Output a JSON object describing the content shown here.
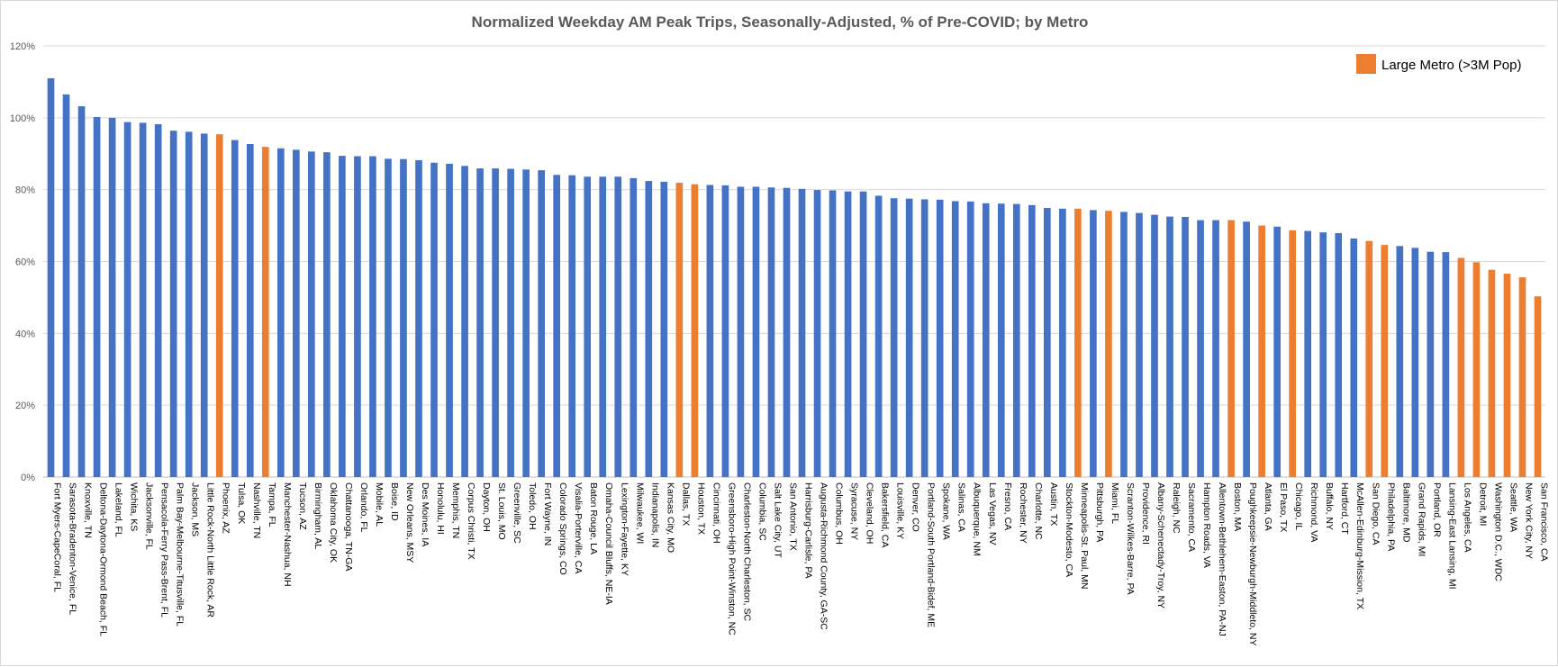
{
  "colors": {
    "default": "#4472c4",
    "large_metro": "#ed7d31",
    "grid": "#d9d9d9",
    "axis": "#bfbfbf"
  },
  "legend": {
    "label": "Large Metro (>3M Pop)"
  },
  "chart_data": {
    "type": "bar",
    "title": "Normalized Weekday AM Peak Trips, Seasonally-Adjusted, % of Pre-COVID; by Metro",
    "xlabel": "",
    "ylabel": "",
    "ylim": [
      0,
      120
    ],
    "yticks": [
      0,
      20,
      40,
      60,
      80,
      100,
      120
    ],
    "ytick_suffix": "%",
    "grid": true,
    "legend_position": "top-right",
    "categories": [
      "Fort Myers-CapeCoral, FL",
      "Sarasota-Bradenton-Venice, FL",
      "Knoxville, TN",
      "Deltona-Daytona-Ormond Beach, FL",
      "Lakeland, FL",
      "Wichita, KS",
      "Jacksonville, FL",
      "Pensacola-Ferry Pass-Brent, FL",
      "Palm Bay-Melbourne-Titusville, FL",
      "Jackson, MS",
      "Little Rock-North Little Rock, AR",
      "Phoenix, AZ",
      "Tulsa, OK",
      "Nashville, TN",
      "Tampa, FL",
      "Manchester-Nashua, NH",
      "Tucson, AZ",
      "Birmingham, AL",
      "Oklahoma City, OK",
      "Chattanooga, TN-GA",
      "Orlando, FL",
      "Mobile, AL",
      "Boise, ID",
      "New Orleans, MSY",
      "Des Moines, IA",
      "Honolulu, HI",
      "Memphis, TN",
      "Corpus Christi, TX",
      "Dayton, OH",
      "St. Louis, MO",
      "Greenville, SC",
      "Toledo, OH",
      "Fort Wayne, IN",
      "Colorado Springs, CO",
      "Visalia-Porterville, CA",
      "Baton Rouge, LA",
      "Omaha-Council Bluffs, NE-IA",
      "Lexington-Fayette, KY",
      "Milwaukee, WI",
      "Indianapolis, IN",
      "Kansas City, MO",
      "Dallas, TX",
      "Houston, TX",
      "Cincinnati, OH",
      "Greensboro-High Point-Winston, NC",
      "Charleston-North Charleston, SC",
      "Columbia, SC",
      "Salt Lake City, UT",
      "San Antonio, TX",
      "Harrisburg-Carlisle, PA",
      "Augusta-Richmond County, GA-SC",
      "Columbus, OH",
      "Syracuse, NY",
      "Cleveland, OH",
      "Bakersfield, CA",
      "Louisville, KY",
      "Denver, CO",
      "Portland-South Portland-Bidef, ME",
      "Spokane, WA",
      "Salinas, CA",
      "Albuquerque, NM",
      "Las Vegas, NV",
      "Fresno, CA",
      "Rochester, NY",
      "Charlotte, NC",
      "Austin, TX",
      "Stockton-Modesto, CA",
      "Minneapolis-St. Paul, MN",
      "Pittsburgh, PA",
      "Miami, FL",
      "Scranton-Wilkes-Barre, PA",
      "Providence, RI",
      "Albany-Schenectady-Troy, NY",
      "Raleigh, NC",
      "Sacramento, CA",
      "Hampton Roads, VA",
      "Allentown-Bethlehem-Easton, PA-NJ",
      "Boston, MA",
      "Poughkeepsie-Newburgh-Middleto, NY",
      "Atlanta, GA",
      "El Paso, TX",
      "Chicago, IL",
      "Richmond, VA",
      "Buffalo, NY",
      "Hartford, CT",
      "McAllen-Edinburg-Mission, TX",
      "San Diego, CA",
      "Philadelphia, PA",
      "Baltimore, MD",
      "Grand Rapids, MI",
      "Portland, OR",
      "Lansing-East Lansing, MI",
      "Los Angeles, CA",
      "Detroit, MI",
      "Washington D.C., WDC",
      "Seattle, WA",
      "New York City, NY",
      "San Francisco, CA"
    ],
    "values": [
      111,
      106.5,
      103.2,
      100.2,
      100,
      98.8,
      98.6,
      98.2,
      96.4,
      96.1,
      95.6,
      95.4,
      93.8,
      92.7,
      91.9,
      91.5,
      91.1,
      90.6,
      90.4,
      89.4,
      89.3,
      89.3,
      88.6,
      88.5,
      88.2,
      87.5,
      87.2,
      86.6,
      85.9,
      85.9,
      85.8,
      85.6,
      85.4,
      84.1,
      84.0,
      83.6,
      83.6,
      83.6,
      83.2,
      82.4,
      82.2,
      81.9,
      81.5,
      81.3,
      81.2,
      80.8,
      80.8,
      80.6,
      80.5,
      80.2,
      79.9,
      79.8,
      79.5,
      79.5,
      78.3,
      77.6,
      77.5,
      77.3,
      77.2,
      76.8,
      76.7,
      76.2,
      76.1,
      76.0,
      75.7,
      74.9,
      74.7,
      74.7,
      74.3,
      74.1,
      73.8,
      73.5,
      73.0,
      72.5,
      72.4,
      71.5,
      71.5,
      71.5,
      71.1,
      70.0,
      69.7,
      68.7,
      68.5,
      68.1,
      67.9,
      66.4,
      65.7,
      64.6,
      64.3,
      63.8,
      62.7,
      62.6,
      61.0,
      59.8,
      57.7,
      56.6,
      55.6,
      50.3
    ],
    "large_metro": [
      "Phoenix, AZ",
      "Tampa, FL",
      "Dallas, TX",
      "Houston, TX",
      "Minneapolis-St. Paul, MN",
      "Miami, FL",
      "Boston, MA",
      "Atlanta, GA",
      "Chicago, IL",
      "San Diego, CA",
      "Philadelphia, PA",
      "Los Angeles, CA",
      "Detroit, MI",
      "Washington D.C., WDC",
      "Seattle, WA",
      "New York City, NY",
      "San Francisco, CA"
    ]
  }
}
